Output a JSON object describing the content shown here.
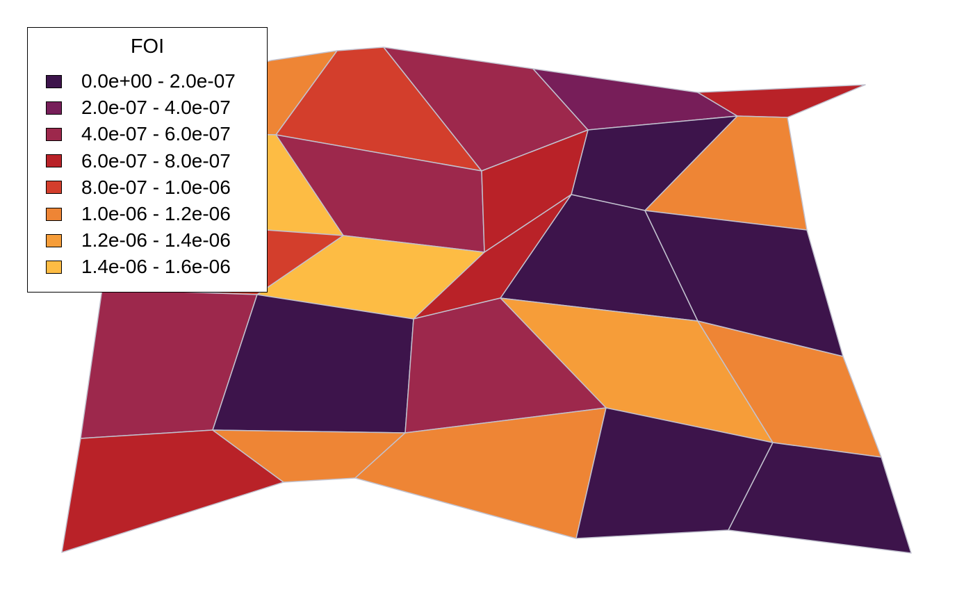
{
  "chart_data": {
    "type": "choropleth",
    "legend": {
      "title": "FOI",
      "placement": "top-left",
      "classes": [
        {
          "label": "0.0e+00 - 2.0e-07",
          "color": "#3d144b"
        },
        {
          "label": "2.0e-07 - 4.0e-07",
          "color": "#771e59"
        },
        {
          "label": "4.0e-07 - 6.0e-07",
          "color": "#9d284c"
        },
        {
          "label": "6.0e-07 - 8.0e-07",
          "color": "#b92228"
        },
        {
          "label": "8.0e-07 - 1.0e-06",
          "color": "#d33e2c"
        },
        {
          "label": "1.0e-06 - 1.2e-06",
          "color": "#ee8535"
        },
        {
          "label": "1.2e-06 - 1.4e-06",
          "color": "#f69d39"
        },
        {
          "label": "1.4e-06 - 1.6e-06",
          "color": "#fdbc44"
        }
      ]
    },
    "region_classes": [
      4,
      5,
      2,
      1,
      3,
      2,
      7,
      0,
      5,
      4,
      3,
      7,
      0,
      0,
      2,
      0,
      3,
      6,
      0,
      5,
      5,
      0,
      0,
      3,
      5,
      5
    ]
  }
}
